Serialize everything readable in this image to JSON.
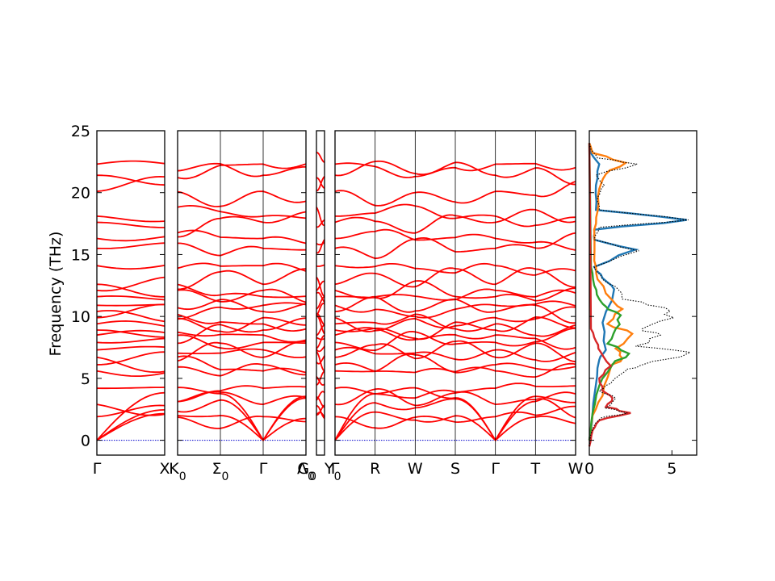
{
  "chart_data": {
    "type": "line",
    "title": "",
    "ylabel": "Frequency (THz)",
    "ylim": [
      -1.2,
      25
    ],
    "yticks": [
      0,
      5,
      10,
      15,
      20,
      25
    ],
    "colors": {
      "bands": "#ff0000",
      "zero_line": "#0000cc",
      "total_dos": "#000000",
      "pdos": [
        "#1f77b4",
        "#ff7f0e",
        "#2ca02c",
        "#d62728"
      ]
    },
    "band_panels": [
      {
        "name": "Γ–X",
        "labels": [
          "Γ",
          "X"
        ],
        "x": [
          0,
          1
        ]
      },
      {
        "name": "K0–Σ0–Γ–Λ0",
        "labels": [
          "K0",
          "Σ0",
          "Γ",
          "Λ0"
        ],
        "x": [
          0,
          1
        ]
      },
      {
        "name": "G0–Y0",
        "labels": [
          "G0",
          "Y0"
        ],
        "x": [
          0,
          1
        ]
      },
      {
        "name": "Γ–R–W–S–Γ–T–W",
        "labels": [
          "Γ",
          "R",
          "W",
          "S",
          "Γ",
          "T",
          "W"
        ],
        "x": [
          0,
          1,
          2,
          3,
          4,
          5,
          6
        ]
      }
    ],
    "gamma_frequencies": [
      0,
      0,
      0,
      1.9,
      2.9,
      4.2,
      5.6,
      6.1,
      6.7,
      7.3,
      7.9,
      8.5,
      8.9,
      9.4,
      9.9,
      10.4,
      10.9,
      11.6,
      12.1,
      12.6,
      14.1,
      15.5,
      16.3,
      17.6,
      18.1,
      20.1,
      21.4,
      22.3
    ],
    "dos": {
      "xlim": [
        0,
        6.5
      ],
      "xticks": [
        0,
        5
      ],
      "total": {
        "name": "total",
        "points": [
          [
            0,
            -0.5
          ],
          [
            0.1,
            0.5
          ],
          [
            0.3,
            1.2
          ],
          [
            0.7,
            1.8
          ],
          [
            2.3,
            2.2
          ],
          [
            1.0,
            2.6
          ],
          [
            1.6,
            3.4
          ],
          [
            0.6,
            4.0
          ],
          [
            1.3,
            4.6
          ],
          [
            2.2,
            5.6
          ],
          [
            3.0,
            6.0
          ],
          [
            6.1,
            7.1
          ],
          [
            2.8,
            7.6
          ],
          [
            4.3,
            8.5
          ],
          [
            3.2,
            9.0
          ],
          [
            5.1,
            9.9
          ],
          [
            4.6,
            10.7
          ],
          [
            2.0,
            11.4
          ],
          [
            1.8,
            12.1
          ],
          [
            0.8,
            13.0
          ],
          [
            0.3,
            14.0
          ],
          [
            3.0,
            15.3
          ],
          [
            0.3,
            16.2
          ],
          [
            0.6,
            17.2
          ],
          [
            6.0,
            17.8
          ],
          [
            0.6,
            18.6
          ],
          [
            0.5,
            19.6
          ],
          [
            0.9,
            20.6
          ],
          [
            0.4,
            21.4
          ],
          [
            2.9,
            22.3
          ],
          [
            0.5,
            22.8
          ],
          [
            0.1,
            23.5
          ],
          [
            0,
            24
          ]
        ]
      },
      "partial": [
        {
          "name": "pdos-1",
          "points": [
            [
              0,
              0
            ],
            [
              0.4,
              4.5
            ],
            [
              0.6,
              6.5
            ],
            [
              1.0,
              7.3
            ],
            [
              0.8,
              9.5
            ],
            [
              1.5,
              12.2
            ],
            [
              0.8,
              13.1
            ],
            [
              0.3,
              14.0
            ],
            [
              2.8,
              15.4
            ],
            [
              0.3,
              16.2
            ],
            [
              0.3,
              17.0
            ],
            [
              5.9,
              17.8
            ],
            [
              0.4,
              18.6
            ],
            [
              0.4,
              20.6
            ],
            [
              0.6,
              22.3
            ],
            [
              0.1,
              23.2
            ],
            [
              0,
              24
            ]
          ]
        },
        {
          "name": "pdos-2",
          "points": [
            [
              0,
              0
            ],
            [
              0.2,
              2.0
            ],
            [
              0.8,
              3.6
            ],
            [
              1.3,
              5.9
            ],
            [
              2.0,
              6.6
            ],
            [
              1.6,
              7.4
            ],
            [
              2.6,
              8.6
            ],
            [
              1.1,
              9.4
            ],
            [
              2.0,
              10.6
            ],
            [
              1.4,
              11.3
            ],
            [
              0.5,
              13.0
            ],
            [
              0.3,
              14.5
            ],
            [
              0.3,
              17.0
            ],
            [
              0.5,
              18.5
            ],
            [
              0.6,
              20.3
            ],
            [
              1.0,
              21.5
            ],
            [
              2.2,
              22.4
            ],
            [
              0.2,
              23.2
            ],
            [
              0,
              24
            ]
          ]
        },
        {
          "name": "pdos-3",
          "points": [
            [
              0,
              0
            ],
            [
              0.2,
              2.2
            ],
            [
              0.6,
              4.4
            ],
            [
              1.4,
              6.1
            ],
            [
              2.4,
              7.0
            ],
            [
              1.1,
              7.8
            ],
            [
              1.6,
              9.0
            ],
            [
              1.9,
              10.1
            ],
            [
              1.0,
              10.8
            ],
            [
              0.6,
              11.4
            ],
            [
              0.3,
              12.5
            ],
            [
              0.1,
              14.0
            ],
            [
              0,
              24
            ]
          ]
        },
        {
          "name": "pdos-4",
          "points": [
            [
              0,
              -0.5
            ],
            [
              0.2,
              0.8
            ],
            [
              0.6,
              1.6
            ],
            [
              2.5,
              2.2
            ],
            [
              1.0,
              2.7
            ],
            [
              1.4,
              3.4
            ],
            [
              0.8,
              4.0
            ],
            [
              0.6,
              5.0
            ],
            [
              1.3,
              6.0
            ],
            [
              0.7,
              7.1
            ],
            [
              0.4,
              8.0
            ],
            [
              0.1,
              9.0
            ],
            [
              0,
              24
            ]
          ]
        }
      ]
    }
  }
}
